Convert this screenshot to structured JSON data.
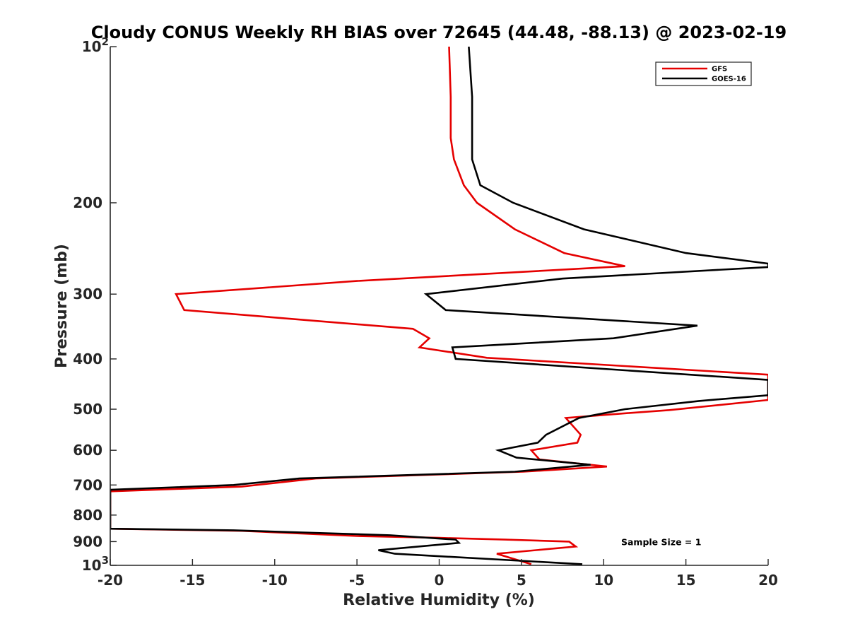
{
  "chart_data": {
    "type": "line",
    "title": "Cloudy CONUS Weekly RH BIAS over 72645 (44.48, -88.13) @ 2023-02-19",
    "xlabel": "Relative Humidity (%)",
    "ylabel": "Pressure (mb)",
    "xlim": [
      -20,
      20
    ],
    "ylim": [
      100,
      1000
    ],
    "yscale": "log",
    "y_reversed": true,
    "grid": false,
    "legend_position": "top-right",
    "x_ticks": [
      {
        "value": -20,
        "label": "-20"
      },
      {
        "value": -15,
        "label": "-15"
      },
      {
        "value": -10,
        "label": "-10"
      },
      {
        "value": -5,
        "label": "-5"
      },
      {
        "value": 0,
        "label": "0"
      },
      {
        "value": 5,
        "label": "5"
      },
      {
        "value": 10,
        "label": "10"
      },
      {
        "value": 15,
        "label": "15"
      },
      {
        "value": 20,
        "label": "20"
      }
    ],
    "y_ticks": [
      {
        "value": 100,
        "base": "10",
        "exp": "2"
      },
      {
        "value": 200,
        "base": "200",
        "exp": ""
      },
      {
        "value": 300,
        "base": "300",
        "exp": ""
      },
      {
        "value": 400,
        "base": "400",
        "exp": ""
      },
      {
        "value": 500,
        "base": "500",
        "exp": ""
      },
      {
        "value": 600,
        "base": "600",
        "exp": ""
      },
      {
        "value": 700,
        "base": "700",
        "exp": ""
      },
      {
        "value": 800,
        "base": "800",
        "exp": ""
      },
      {
        "value": 900,
        "base": "900",
        "exp": ""
      },
      {
        "value": 1000,
        "base": "10",
        "exp": "3"
      }
    ],
    "series": [
      {
        "name": "GFS",
        "color": "#e50000",
        "points": [
          [
            0.6,
            100
          ],
          [
            0.7,
            125
          ],
          [
            0.7,
            150
          ],
          [
            0.9,
            165
          ],
          [
            1.5,
            185
          ],
          [
            2.3,
            200
          ],
          [
            4.6,
            225
          ],
          [
            7.6,
            250
          ],
          [
            11.3,
            265
          ],
          [
            -5.0,
            283
          ],
          [
            -16.0,
            300
          ],
          [
            -15.5,
            322
          ],
          [
            -1.6,
            350
          ],
          [
            -0.6,
            365
          ],
          [
            -1.2,
            380
          ],
          [
            2.9,
            398
          ],
          [
            20.0,
            429
          ],
          [
            20.0,
            480
          ],
          [
            14.0,
            502
          ],
          [
            11.0,
            510
          ],
          [
            9.0,
            516
          ],
          [
            7.7,
            520
          ],
          [
            8.6,
            560
          ],
          [
            8.4,
            580
          ],
          [
            5.6,
            600
          ],
          [
            6.1,
            625
          ],
          [
            10.2,
            645
          ],
          [
            5.1,
            660
          ],
          [
            -7.5,
            680
          ],
          [
            -12.0,
            705
          ],
          [
            -20.0,
            720
          ],
          [
            -20.0,
            850
          ],
          [
            -12.0,
            858
          ],
          [
            -5.0,
            878
          ],
          [
            0.0,
            885
          ],
          [
            4.0,
            892
          ],
          [
            7.9,
            900
          ],
          [
            8.3,
            920
          ],
          [
            3.5,
            950
          ],
          [
            5.6,
            995
          ]
        ]
      },
      {
        "name": "GOES-16",
        "color": "#000000",
        "points": [
          [
            1.8,
            100
          ],
          [
            2.0,
            125
          ],
          [
            2.0,
            150
          ],
          [
            2.0,
            165
          ],
          [
            2.5,
            185
          ],
          [
            4.5,
            200
          ],
          [
            8.8,
            225
          ],
          [
            15.0,
            250
          ],
          [
            20.0,
            262
          ],
          [
            20.0,
            266
          ],
          [
            7.5,
            280
          ],
          [
            -0.8,
            300
          ],
          [
            0.4,
            322
          ],
          [
            15.7,
            345
          ],
          [
            10.6,
            365
          ],
          [
            0.8,
            380
          ],
          [
            1.0,
            400
          ],
          [
            20.0,
            439
          ],
          [
            20.0,
            470
          ],
          [
            15.8,
            482
          ],
          [
            11.3,
            500
          ],
          [
            8.5,
            520
          ],
          [
            6.5,
            560
          ],
          [
            6.0,
            580
          ],
          [
            3.6,
            600
          ],
          [
            4.7,
            620
          ],
          [
            9.2,
            640
          ],
          [
            4.6,
            660
          ],
          [
            -8.5,
            680
          ],
          [
            -12.5,
            700
          ],
          [
            -20.0,
            715
          ],
          [
            -20.0,
            850
          ],
          [
            -12.5,
            856
          ],
          [
            -3.0,
            875
          ],
          [
            1.0,
            892
          ],
          [
            1.2,
            905
          ],
          [
            -3.7,
            935
          ],
          [
            -2.7,
            950
          ],
          [
            8.7,
            995
          ]
        ]
      }
    ],
    "annotations": [
      {
        "text": "Sample Size = 1",
        "x": 13.5,
        "y": 900
      }
    ]
  }
}
